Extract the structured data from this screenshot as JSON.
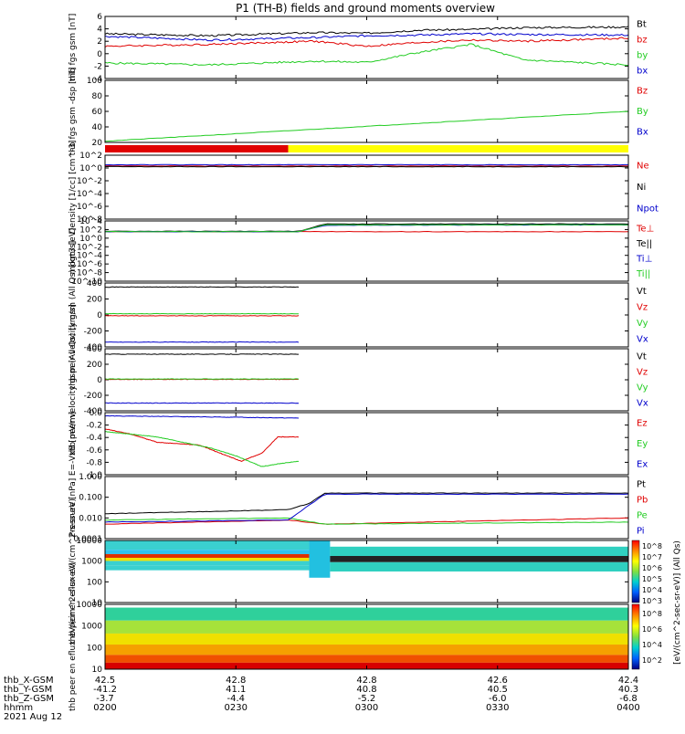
{
  "title": "P1 (TH-B) fields and ground moments overview",
  "footer": {
    "row_labels": [
      "thb_X-GSM",
      "thb_Y-GSM",
      "thb_Z-GSM",
      "hhmm",
      "2021 Aug 12"
    ],
    "columns": [
      [
        "42.5",
        "-41.2",
        "-3.7",
        "0200"
      ],
      [
        "42.8",
        "41.1",
        "-4.4",
        "0230"
      ],
      [
        "42.8",
        "40.8",
        "-5.2",
        "0300"
      ],
      [
        "42.6",
        "40.5",
        "-6.0",
        "0330"
      ],
      [
        "42.4",
        "40.3",
        "-6.8",
        "0400"
      ]
    ]
  },
  "colors": {
    "black": "#000000",
    "red": "#e00000",
    "green": "#22cc22",
    "blue": "#0000cc",
    "yellow": "#ffff00"
  },
  "colorbar": {
    "label": "[eV/(cm^2-sec-sr-eV)] (All Qs)",
    "upper_ticks": [
      "10^8",
      "10^7",
      "10^6",
      "10^5",
      "10^4",
      "10^3"
    ],
    "lower_ticks": [
      "10^8",
      "10^6",
      "10^4",
      "10^2"
    ]
  },
  "chart_data": [
    {
      "type": "line",
      "ylabel": "thb fgs gsm [nT]",
      "ylim": [
        -4,
        6
      ],
      "yticks": [
        "6",
        "4",
        "2",
        "0",
        "-2",
        "-4"
      ],
      "series": [
        {
          "name": "Bt",
          "color": "#000000",
          "x": [
            0,
            0.2,
            0.4,
            0.5,
            0.6,
            0.7,
            0.8,
            1.0
          ],
          "y": [
            3.2,
            2.9,
            3.4,
            3.3,
            3.8,
            3.9,
            4.2,
            4.3
          ]
        },
        {
          "name": "bz",
          "color": "#e00000",
          "x": [
            0,
            0.2,
            0.4,
            0.5,
            0.6,
            0.7,
            0.8,
            1.0
          ],
          "y": [
            1.2,
            1.5,
            2.0,
            1.2,
            1.8,
            2.2,
            2.0,
            2.5
          ]
        },
        {
          "name": "by",
          "color": "#22cc22",
          "x": [
            0,
            0.2,
            0.4,
            0.5,
            0.6,
            0.7,
            0.8,
            1.0
          ],
          "y": [
            -1.5,
            -1.8,
            -1.2,
            -1.4,
            0.2,
            1.5,
            -1.0,
            -1.8
          ]
        },
        {
          "name": "bx",
          "color": "#0000cc",
          "x": [
            0,
            0.2,
            0.4,
            0.5,
            0.6,
            0.7,
            0.8,
            1.0
          ],
          "y": [
            2.8,
            2.2,
            2.6,
            2.9,
            3.0,
            3.2,
            3.1,
            3.0
          ]
        }
      ]
    },
    {
      "type": "line",
      "ylabel": "thb fgs gsm -dsp [nT]",
      "ylim": [
        0,
        100
      ],
      "yticks": [
        "100",
        "80",
        "60",
        "40",
        "20"
      ],
      "series": [
        {
          "name": "Bz",
          "color": "#e00000",
          "x": [],
          "y": []
        },
        {
          "name": "By",
          "color": "#22cc22",
          "x": [
            0,
            1
          ],
          "y": [
            2,
            50
          ]
        },
        {
          "name": "Bx",
          "color": "#0000cc",
          "x": [],
          "y": []
        }
      ]
    },
    {
      "type": "line",
      "ylabel": "Density [1/cc] [cm^-3]",
      "scale": "log",
      "ylim": [
        -8,
        2
      ],
      "yticks": [
        "10^2",
        "10^0",
        "10^-2",
        "10^-4",
        "10^-6",
        "10^-8"
      ],
      "series": [
        {
          "name": "Ne",
          "color": "#e00000",
          "x": [
            0,
            1
          ],
          "y": [
            0.3,
            0.3
          ]
        },
        {
          "name": "Ni",
          "color": "#000000",
          "x": [
            0,
            1
          ],
          "y": [
            0.2,
            0.2
          ]
        },
        {
          "name": "Npot",
          "color": "#0000cc",
          "x": [
            0,
            1
          ],
          "y": [
            0.5,
            0.5
          ]
        }
      ]
    },
    {
      "type": "line",
      "ylabel": "mogt3 [eV]",
      "scale": "log",
      "ylim": [
        -10,
        4
      ],
      "yticks": [
        "10^4",
        "10^2",
        "10^0",
        "10^-2",
        "10^-4",
        "10^-6",
        "10^-8",
        "10^-10"
      ],
      "series": [
        {
          "name": "Te⊥",
          "color": "#e00000",
          "x": [
            0,
            1
          ],
          "y": [
            1.5,
            1.5
          ]
        },
        {
          "name": "Te||",
          "color": "#000000",
          "x": [
            0,
            0.37,
            0.42,
            1.0
          ],
          "y": [
            1.6,
            1.6,
            3.3,
            3.3
          ]
        },
        {
          "name": "Ti⊥",
          "color": "#0000cc",
          "x": [
            0,
            0.37,
            0.42,
            1.0
          ],
          "y": [
            1.5,
            1.5,
            3.0,
            3.1
          ]
        },
        {
          "name": "Ti||",
          "color": "#22cc22",
          "x": [
            0,
            0.37,
            0.42,
            1.0
          ],
          "y": [
            1.5,
            1.5,
            3.1,
            3.1
          ]
        }
      ]
    },
    {
      "type": "line",
      "ylabel": "thb peir velocity gsm (All Qs) [km/s]",
      "ylim": [
        -400,
        400
      ],
      "yticks": [
        "400",
        "200",
        "0",
        "-200",
        "-400"
      ],
      "series": [
        {
          "name": "Vt",
          "color": "#000000",
          "x": [
            0,
            0.37
          ],
          "y": [
            350,
            350
          ]
        },
        {
          "name": "Vz",
          "color": "#e00000",
          "x": [
            0,
            0.37
          ],
          "y": [
            -10,
            -10
          ]
        },
        {
          "name": "Vy",
          "color": "#22cc22",
          "x": [
            0,
            0.37
          ],
          "y": [
            15,
            15
          ]
        },
        {
          "name": "Vx",
          "color": "#0000cc",
          "x": [
            0,
            0.37
          ],
          "y": [
            -340,
            -340
          ]
        }
      ]
    },
    {
      "type": "line",
      "ylabel": "thb peer velocity gsm (All Qs) [km/s]",
      "ylim": [
        -400,
        400
      ],
      "yticks": [
        "400",
        "200",
        "0",
        "-200",
        "-400"
      ],
      "series": [
        {
          "name": "Vt",
          "color": "#000000",
          "x": [
            0,
            0.37
          ],
          "y": [
            330,
            330
          ]
        },
        {
          "name": "Vz",
          "color": "#e00000",
          "x": [
            0,
            0.37
          ],
          "y": [
            5,
            5
          ]
        },
        {
          "name": "Vy",
          "color": "#22cc22",
          "x": [
            0,
            0.37
          ],
          "y": [
            10,
            10
          ]
        },
        {
          "name": "Vx",
          "color": "#0000cc",
          "x": [
            0,
            0.37
          ],
          "y": [
            -300,
            -300
          ]
        }
      ]
    },
    {
      "type": "line",
      "ylabel": "E=-VxB [mV/m]",
      "ylim": [
        -1.1,
        0.05
      ],
      "yticks": [
        "0.0",
        "-0.2",
        "-0.4",
        "-0.6",
        "-0.8",
        "-1.0"
      ],
      "series": [
        {
          "name": "Ez",
          "color": "#e00000",
          "x": [
            0,
            0.05,
            0.1,
            0.18,
            0.26,
            0.3,
            0.33,
            0.37
          ],
          "y": [
            -0.25,
            -0.35,
            -0.5,
            -0.55,
            -0.85,
            -0.7,
            -0.4,
            -0.4
          ]
        },
        {
          "name": "Ey",
          "color": "#22cc22",
          "x": [
            0,
            0.1,
            0.2,
            0.25,
            0.3,
            0.33,
            0.37
          ],
          "y": [
            -0.3,
            -0.4,
            -0.6,
            -0.75,
            -0.95,
            -0.9,
            -0.85
          ]
        },
        {
          "name": "Ex",
          "color": "#0000cc",
          "x": [
            0,
            0.2,
            0.37
          ],
          "y": [
            -0.01,
            -0.03,
            -0.05
          ]
        }
      ]
    },
    {
      "type": "line",
      "ylabel": "Pressure [nPa]",
      "scale": "log",
      "ylim": [
        -3,
        0
      ],
      "yticks": [
        "1.000",
        "0.100",
        "0.010",
        "0.0001"
      ],
      "series": [
        {
          "name": "Pt",
          "color": "#000000",
          "x": [
            0,
            0.35,
            0.39,
            0.42,
            1.0
          ],
          "y": [
            -1.8,
            -1.6,
            -1.3,
            -0.8,
            -0.8
          ]
        },
        {
          "name": "Pb",
          "color": "#e00000",
          "x": [
            0,
            0.35,
            0.42,
            1.0
          ],
          "y": [
            -2.3,
            -2.1,
            -2.3,
            -2.0
          ]
        },
        {
          "name": "Pe",
          "color": "#22cc22",
          "x": [
            0,
            0.35,
            0.42,
            1.0
          ],
          "y": [
            -2.1,
            -2.0,
            -2.3,
            -2.2
          ]
        },
        {
          "name": "Pi",
          "color": "#0000cc",
          "x": [
            0,
            0.35,
            0.42,
            1.0
          ],
          "y": [
            -2.2,
            -2.1,
            -0.85,
            -0.85
          ]
        }
      ]
    },
    {
      "type": "heatmap",
      "ylabel": "thb peir en eflux eV/(cm^2-s-sr-eV)",
      "yticks": [
        "10000",
        "1000",
        "100",
        "10"
      ]
    },
    {
      "type": "heatmap",
      "ylabel": "thb peer en eflux eV/(cm^2-s-sr-eV)",
      "yticks": [
        "10000",
        "1000",
        "100",
        "10"
      ]
    }
  ]
}
